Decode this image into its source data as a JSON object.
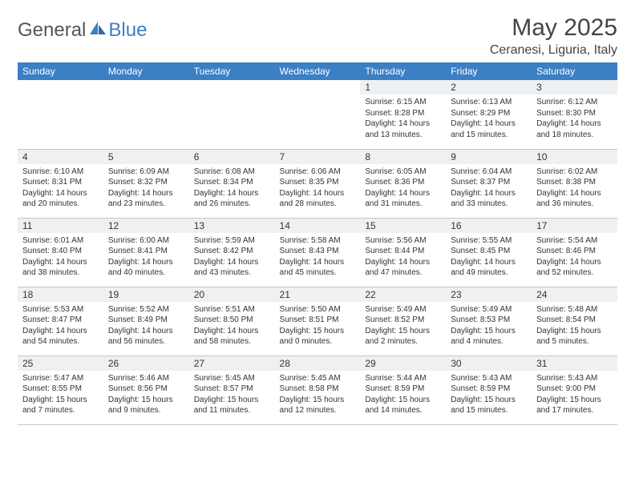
{
  "logo": {
    "general": "General",
    "blue": "Blue"
  },
  "header": {
    "month": "May 2025",
    "location": "Ceranesi, Liguria, Italy"
  },
  "colors": {
    "header_bg": "#3b7fc4",
    "header_text": "#ffffff",
    "daynum_bg": "#eef0f2",
    "row_border": "#c7c7c7",
    "text": "#333333",
    "background": "#ffffff"
  },
  "calendar": {
    "day_labels": [
      "Sunday",
      "Monday",
      "Tuesday",
      "Wednesday",
      "Thursday",
      "Friday",
      "Saturday"
    ],
    "weeks": [
      [
        {
          "n": "",
          "sr": "",
          "ss": "",
          "dl": "",
          "empty": true
        },
        {
          "n": "",
          "sr": "",
          "ss": "",
          "dl": "",
          "empty": true
        },
        {
          "n": "",
          "sr": "",
          "ss": "",
          "dl": "",
          "empty": true
        },
        {
          "n": "",
          "sr": "",
          "ss": "",
          "dl": "",
          "empty": true
        },
        {
          "n": "1",
          "sr": "Sunrise: 6:15 AM",
          "ss": "Sunset: 8:28 PM",
          "dl": "Daylight: 14 hours and 13 minutes."
        },
        {
          "n": "2",
          "sr": "Sunrise: 6:13 AM",
          "ss": "Sunset: 8:29 PM",
          "dl": "Daylight: 14 hours and 15 minutes."
        },
        {
          "n": "3",
          "sr": "Sunrise: 6:12 AM",
          "ss": "Sunset: 8:30 PM",
          "dl": "Daylight: 14 hours and 18 minutes."
        }
      ],
      [
        {
          "n": "4",
          "sr": "Sunrise: 6:10 AM",
          "ss": "Sunset: 8:31 PM",
          "dl": "Daylight: 14 hours and 20 minutes."
        },
        {
          "n": "5",
          "sr": "Sunrise: 6:09 AM",
          "ss": "Sunset: 8:32 PM",
          "dl": "Daylight: 14 hours and 23 minutes."
        },
        {
          "n": "6",
          "sr": "Sunrise: 6:08 AM",
          "ss": "Sunset: 8:34 PM",
          "dl": "Daylight: 14 hours and 26 minutes."
        },
        {
          "n": "7",
          "sr": "Sunrise: 6:06 AM",
          "ss": "Sunset: 8:35 PM",
          "dl": "Daylight: 14 hours and 28 minutes."
        },
        {
          "n": "8",
          "sr": "Sunrise: 6:05 AM",
          "ss": "Sunset: 8:36 PM",
          "dl": "Daylight: 14 hours and 31 minutes."
        },
        {
          "n": "9",
          "sr": "Sunrise: 6:04 AM",
          "ss": "Sunset: 8:37 PM",
          "dl": "Daylight: 14 hours and 33 minutes."
        },
        {
          "n": "10",
          "sr": "Sunrise: 6:02 AM",
          "ss": "Sunset: 8:38 PM",
          "dl": "Daylight: 14 hours and 36 minutes."
        }
      ],
      [
        {
          "n": "11",
          "sr": "Sunrise: 6:01 AM",
          "ss": "Sunset: 8:40 PM",
          "dl": "Daylight: 14 hours and 38 minutes."
        },
        {
          "n": "12",
          "sr": "Sunrise: 6:00 AM",
          "ss": "Sunset: 8:41 PM",
          "dl": "Daylight: 14 hours and 40 minutes."
        },
        {
          "n": "13",
          "sr": "Sunrise: 5:59 AM",
          "ss": "Sunset: 8:42 PM",
          "dl": "Daylight: 14 hours and 43 minutes."
        },
        {
          "n": "14",
          "sr": "Sunrise: 5:58 AM",
          "ss": "Sunset: 8:43 PM",
          "dl": "Daylight: 14 hours and 45 minutes."
        },
        {
          "n": "15",
          "sr": "Sunrise: 5:56 AM",
          "ss": "Sunset: 8:44 PM",
          "dl": "Daylight: 14 hours and 47 minutes."
        },
        {
          "n": "16",
          "sr": "Sunrise: 5:55 AM",
          "ss": "Sunset: 8:45 PM",
          "dl": "Daylight: 14 hours and 49 minutes."
        },
        {
          "n": "17",
          "sr": "Sunrise: 5:54 AM",
          "ss": "Sunset: 8:46 PM",
          "dl": "Daylight: 14 hours and 52 minutes."
        }
      ],
      [
        {
          "n": "18",
          "sr": "Sunrise: 5:53 AM",
          "ss": "Sunset: 8:47 PM",
          "dl": "Daylight: 14 hours and 54 minutes."
        },
        {
          "n": "19",
          "sr": "Sunrise: 5:52 AM",
          "ss": "Sunset: 8:49 PM",
          "dl": "Daylight: 14 hours and 56 minutes."
        },
        {
          "n": "20",
          "sr": "Sunrise: 5:51 AM",
          "ss": "Sunset: 8:50 PM",
          "dl": "Daylight: 14 hours and 58 minutes."
        },
        {
          "n": "21",
          "sr": "Sunrise: 5:50 AM",
          "ss": "Sunset: 8:51 PM",
          "dl": "Daylight: 15 hours and 0 minutes."
        },
        {
          "n": "22",
          "sr": "Sunrise: 5:49 AM",
          "ss": "Sunset: 8:52 PM",
          "dl": "Daylight: 15 hours and 2 minutes."
        },
        {
          "n": "23",
          "sr": "Sunrise: 5:49 AM",
          "ss": "Sunset: 8:53 PM",
          "dl": "Daylight: 15 hours and 4 minutes."
        },
        {
          "n": "24",
          "sr": "Sunrise: 5:48 AM",
          "ss": "Sunset: 8:54 PM",
          "dl": "Daylight: 15 hours and 5 minutes."
        }
      ],
      [
        {
          "n": "25",
          "sr": "Sunrise: 5:47 AM",
          "ss": "Sunset: 8:55 PM",
          "dl": "Daylight: 15 hours and 7 minutes."
        },
        {
          "n": "26",
          "sr": "Sunrise: 5:46 AM",
          "ss": "Sunset: 8:56 PM",
          "dl": "Daylight: 15 hours and 9 minutes."
        },
        {
          "n": "27",
          "sr": "Sunrise: 5:45 AM",
          "ss": "Sunset: 8:57 PM",
          "dl": "Daylight: 15 hours and 11 minutes."
        },
        {
          "n": "28",
          "sr": "Sunrise: 5:45 AM",
          "ss": "Sunset: 8:58 PM",
          "dl": "Daylight: 15 hours and 12 minutes."
        },
        {
          "n": "29",
          "sr": "Sunrise: 5:44 AM",
          "ss": "Sunset: 8:59 PM",
          "dl": "Daylight: 15 hours and 14 minutes."
        },
        {
          "n": "30",
          "sr": "Sunrise: 5:43 AM",
          "ss": "Sunset: 8:59 PM",
          "dl": "Daylight: 15 hours and 15 minutes."
        },
        {
          "n": "31",
          "sr": "Sunrise: 5:43 AM",
          "ss": "Sunset: 9:00 PM",
          "dl": "Daylight: 15 hours and 17 minutes."
        }
      ]
    ]
  }
}
